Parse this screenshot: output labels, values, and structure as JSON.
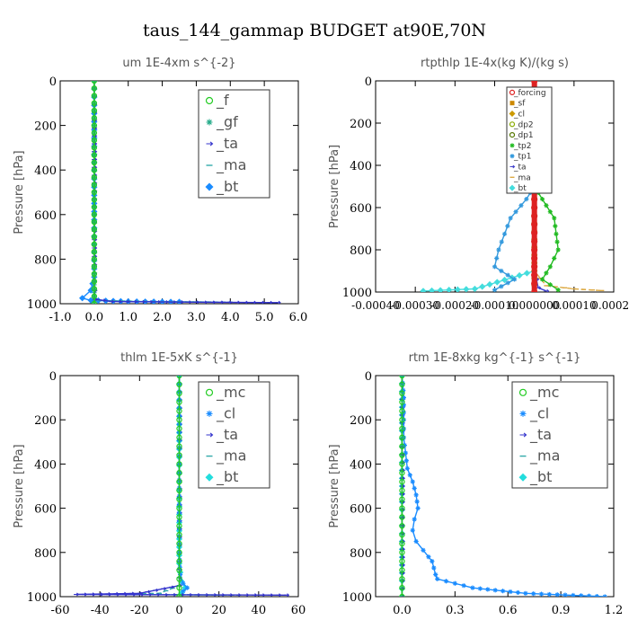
{
  "figure": {
    "title": "taus_144_gammap  BUDGET at90E,70N"
  },
  "chart_data": [
    {
      "type": "line",
      "title": "um  1E-4xm s^{-2}",
      "ylabel": "Pressure [hPa]",
      "xlim": [
        -1.0,
        6.0
      ],
      "ylim": [
        1000,
        0
      ],
      "xticks": [
        "-1.0",
        "0.0",
        "1.0",
        "2.0",
        "3.0",
        "4.0",
        "5.0",
        "6.0"
      ],
      "xtick_values": [
        -1,
        0,
        1,
        2,
        3,
        4,
        5,
        6
      ],
      "yticks": [
        "0",
        "200",
        "400",
        "600",
        "800",
        "1000"
      ],
      "ytick_values": [
        0,
        200,
        400,
        600,
        800,
        1000
      ],
      "legend_position": "top-right",
      "series": [
        {
          "name": "_f",
          "color": "#22cc22",
          "marker": "circle",
          "x": [
            0,
            0,
            0,
            0,
            0,
            0
          ],
          "y": [
            0,
            200,
            400,
            600,
            800,
            1000
          ]
        },
        {
          "name": "_gf",
          "color": "#22aa88",
          "marker": "star",
          "x": [
            0,
            0,
            0,
            0,
            0,
            0
          ],
          "y": [
            0,
            200,
            400,
            600,
            800,
            1000
          ]
        },
        {
          "name": "_ta",
          "color": "#3333cc",
          "marker": "arrow",
          "x": [
            0,
            0,
            0,
            0.02,
            0.5,
            3.0,
            5.4
          ],
          "y": [
            0,
            600,
            900,
            980,
            990,
            993,
            995
          ]
        },
        {
          "name": "_ma",
          "color": "#33aaaa",
          "marker": "dash",
          "x": [
            0,
            0,
            0,
            0.05,
            1.5,
            4.0
          ],
          "y": [
            0,
            600,
            950,
            985,
            990,
            993
          ]
        },
        {
          "name": "_bt",
          "color": "#1a8cff",
          "marker": "diamond",
          "x": [
            0,
            0,
            -0.1,
            -0.35,
            -0.1,
            1.0,
            2.5
          ],
          "y": [
            0,
            880,
            940,
            975,
            985,
            990,
            992
          ]
        }
      ]
    },
    {
      "type": "line",
      "title": "rtpthlp  1E-4x(kg K)/(kg s)",
      "ylabel": "Pressure [hPa]",
      "xlim": [
        -0.0004,
        0.0002
      ],
      "ylim": [
        1000,
        0
      ],
      "xticks": [
        "-0.00040",
        "-0.00030",
        "-0.00020",
        "-0.00010",
        "0.000000",
        "0.00010",
        "0.00020"
      ],
      "xtick_values": [
        -0.0004,
        -0.0003,
        -0.0002,
        -0.0001,
        0,
        0.0001,
        0.0002
      ],
      "yticks": [
        "0",
        "200",
        "400",
        "600",
        "800",
        "1000"
      ],
      "ytick_values": [
        0,
        200,
        400,
        600,
        800,
        1000
      ],
      "legend_position": "top-right",
      "series": [
        {
          "name": "_forcing",
          "color": "#dd2222",
          "marker": "circle",
          "x": [
            0,
            0,
            0,
            0,
            0,
            0
          ],
          "y": [
            0,
            200,
            400,
            600,
            800,
            1000
          ]
        },
        {
          "name": "_sf",
          "color": "#cc8800",
          "marker": "square",
          "x": [
            0,
            0,
            0,
            0,
            0
          ],
          "y": [
            0,
            300,
            600,
            900,
            1000
          ]
        },
        {
          "name": "_cl",
          "color": "#cc9900",
          "marker": "diamond",
          "x": [
            0,
            0,
            0,
            0,
            0
          ],
          "y": [
            0,
            300,
            600,
            900,
            1000
          ]
        },
        {
          "name": "_dp2",
          "color": "#88aa00",
          "marker": "circle",
          "x": [
            0,
            0,
            0,
            0,
            0
          ],
          "y": [
            0,
            300,
            600,
            900,
            1000
          ]
        },
        {
          "name": "_dp1",
          "color": "#557700",
          "marker": "circle",
          "x": [
            0,
            0,
            0,
            0,
            0
          ],
          "y": [
            0,
            300,
            600,
            900,
            1000
          ]
        },
        {
          "name": "_tp2",
          "color": "#22bb22",
          "marker": "star",
          "x": [
            0,
            0,
            2e-05,
            5e-05,
            6e-05,
            4e-05,
            2e-05,
            6e-05
          ],
          "y": [
            0,
            500,
            560,
            650,
            800,
            880,
            940,
            990
          ]
        },
        {
          "name": "_tp1",
          "color": "#3399dd",
          "marker": "star",
          "x": [
            0,
            0,
            -2e-05,
            -6e-05,
            -9e-05,
            -0.0001,
            -5e-05,
            -0.0001
          ],
          "y": [
            0,
            500,
            560,
            650,
            800,
            880,
            940,
            990
          ]
        },
        {
          "name": "_ta",
          "color": "#4444cc",
          "marker": "arrow",
          "x": [
            0,
            0,
            1e-05,
            3e-05
          ],
          "y": [
            0,
            900,
            980,
            995
          ]
        },
        {
          "name": "_ma",
          "color": "#ddaa44",
          "marker": "dash",
          "x": [
            0,
            0,
            3e-05,
            0.0001,
            0.00017
          ],
          "y": [
            0,
            900,
            970,
            985,
            993
          ]
        },
        {
          "name": "_bt",
          "color": "#44dddd",
          "marker": "diamond",
          "x": [
            0,
            0,
            -0.00015,
            -0.00028
          ],
          "y": [
            0,
            900,
            985,
            995
          ]
        }
      ]
    },
    {
      "type": "line",
      "title": "thlm  1E-5xK s^{-1}",
      "ylabel": "Pressure [hPa]",
      "xlim": [
        -60,
        60
      ],
      "ylim": [
        1000,
        0
      ],
      "xticks": [
        "-60",
        "-40",
        "-20",
        "0",
        "20",
        "40",
        "60"
      ],
      "xtick_values": [
        -60,
        -40,
        -20,
        0,
        20,
        40,
        60
      ],
      "yticks": [
        "0",
        "200",
        "400",
        "600",
        "800",
        "1000"
      ],
      "ytick_values": [
        0,
        200,
        400,
        600,
        800,
        1000
      ],
      "legend_position": "top-right",
      "series": [
        {
          "name": "_mc",
          "color": "#22cc22",
          "marker": "circle",
          "x": [
            0,
            0,
            0,
            0,
            0,
            0
          ],
          "y": [
            0,
            200,
            400,
            600,
            800,
            1000
          ]
        },
        {
          "name": "_cl",
          "color": "#1a8cff",
          "marker": "star",
          "x": [
            0,
            0,
            0.5,
            2,
            4,
            2
          ],
          "y": [
            0,
            800,
            900,
            940,
            960,
            975
          ]
        },
        {
          "name": "_ta",
          "color": "#3333cc",
          "marker": "arrow",
          "x": [
            0,
            0,
            -20,
            -52,
            54
          ],
          "y": [
            0,
            950,
            985,
            990,
            993
          ]
        },
        {
          "name": "_ma",
          "color": "#33aaaa",
          "marker": "dash",
          "x": [
            0,
            0,
            -10,
            -30,
            30
          ],
          "y": [
            0,
            950,
            985,
            990,
            993
          ]
        },
        {
          "name": "_bt",
          "color": "#22dddd",
          "marker": "diamond",
          "x": [
            0,
            0,
            1,
            3,
            1
          ],
          "y": [
            0,
            850,
            930,
            960,
            985
          ]
        }
      ]
    },
    {
      "type": "line",
      "title": "rtm  1E-8xkg kg^{-1} s^{-1}",
      "ylabel": "Pressure [hPa]",
      "xlim": [
        -0.15,
        1.2
      ],
      "ylim": [
        1000,
        0
      ],
      "xticks": [
        "0.0",
        "0.3",
        "0.6",
        "0.9",
        "1.2"
      ],
      "xtick_values": [
        0.0,
        0.3,
        0.6,
        0.9,
        1.2
      ],
      "yticks": [
        "0",
        "200",
        "400",
        "600",
        "800",
        "1000"
      ],
      "ytick_values": [
        0,
        200,
        400,
        600,
        800,
        1000
      ],
      "legend_position": "top-right",
      "series": [
        {
          "name": "_mc",
          "color": "#22cc22",
          "marker": "circle",
          "x": [
            0,
            0,
            0,
            0,
            0,
            0
          ],
          "y": [
            0,
            200,
            400,
            600,
            800,
            1000
          ]
        },
        {
          "name": "_cl",
          "color": "#1a8cff",
          "marker": "star",
          "x": [
            0,
            0.01,
            0.01,
            0.01,
            0.02,
            0.03,
            0.06,
            0.08,
            0.09,
            0.07,
            0.06,
            0.08,
            0.12,
            0.15,
            0.17,
            0.18,
            0.19,
            0.2,
            0.4,
            0.7,
            1.15
          ],
          "y": [
            0,
            100,
            200,
            280,
            350,
            420,
            480,
            540,
            600,
            650,
            700,
            750,
            790,
            820,
            840,
            870,
            900,
            920,
            960,
            985,
            1000
          ]
        },
        {
          "name": "_ta",
          "color": "#3333cc",
          "marker": "arrow",
          "x": [
            0,
            0,
            0
          ],
          "y": [
            0,
            500,
            1000
          ]
        },
        {
          "name": "_ma",
          "color": "#33aaaa",
          "marker": "dash",
          "x": [
            0,
            0,
            0
          ],
          "y": [
            0,
            500,
            1000
          ]
        },
        {
          "name": "_bt",
          "color": "#22dddd",
          "marker": "diamond",
          "x": [
            0,
            0,
            0
          ],
          "y": [
            0,
            500,
            1000
          ]
        }
      ]
    }
  ]
}
